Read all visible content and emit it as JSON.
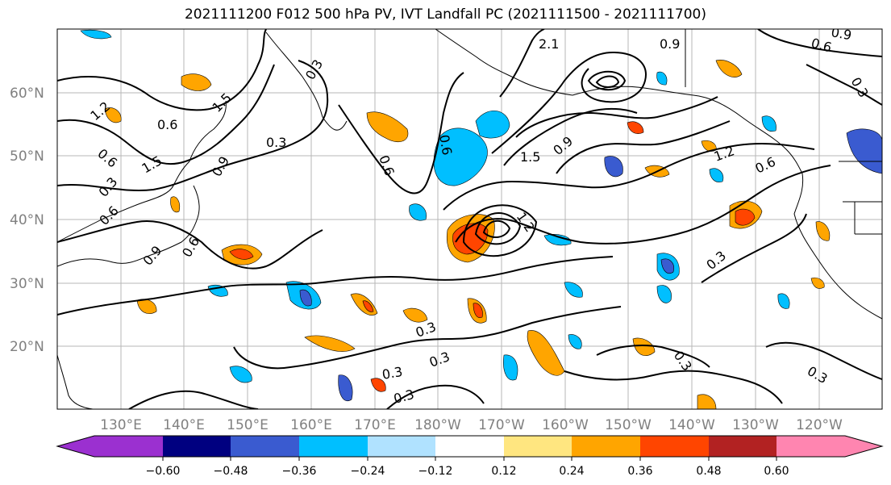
{
  "title": "2021111200 F012 500 hPa PV, IVT Landfall PC (2021111500 - 2021111700)",
  "lat_labels": [
    "60°N",
    "50°N",
    "40°N",
    "30°N",
    "20°N"
  ],
  "lon_labels": [
    "130°E",
    "140°E",
    "150°E",
    "160°E",
    "170°E",
    "180°W",
    "170°W",
    "160°W",
    "150°W",
    "140°W",
    "130°W",
    "120°W"
  ],
  "colorbar": {
    "ticks": [
      "−0.60",
      "−0.48",
      "−0.36",
      "−0.24",
      "−0.12",
      "0.12",
      "0.24",
      "0.36",
      "0.48",
      "0.60"
    ],
    "colors": [
      "#9b30d0",
      "#000080",
      "#3a5bd0",
      "#00bfff",
      "#b0e2ff",
      "#ffffff",
      "#ffe680",
      "#ffa500",
      "#ff4500",
      "#b22222",
      "#ff85b0"
    ]
  },
  "contour_labels": [
    "0.3",
    "0.3",
    "0.3",
    "0.3",
    "0.3",
    "0.3",
    "0.3",
    "0.3",
    "0.3",
    "0.6",
    "0.6",
    "0.6",
    "0.6",
    "0.6",
    "0.6",
    "0.6",
    "0.6",
    "0.9",
    "0.9",
    "0.9",
    "0.9",
    "0.9",
    "1.2",
    "1.2",
    "1.2",
    "1.5",
    "1.5",
    "1.5",
    "2.1",
    "0.3",
    "0.3"
  ]
}
